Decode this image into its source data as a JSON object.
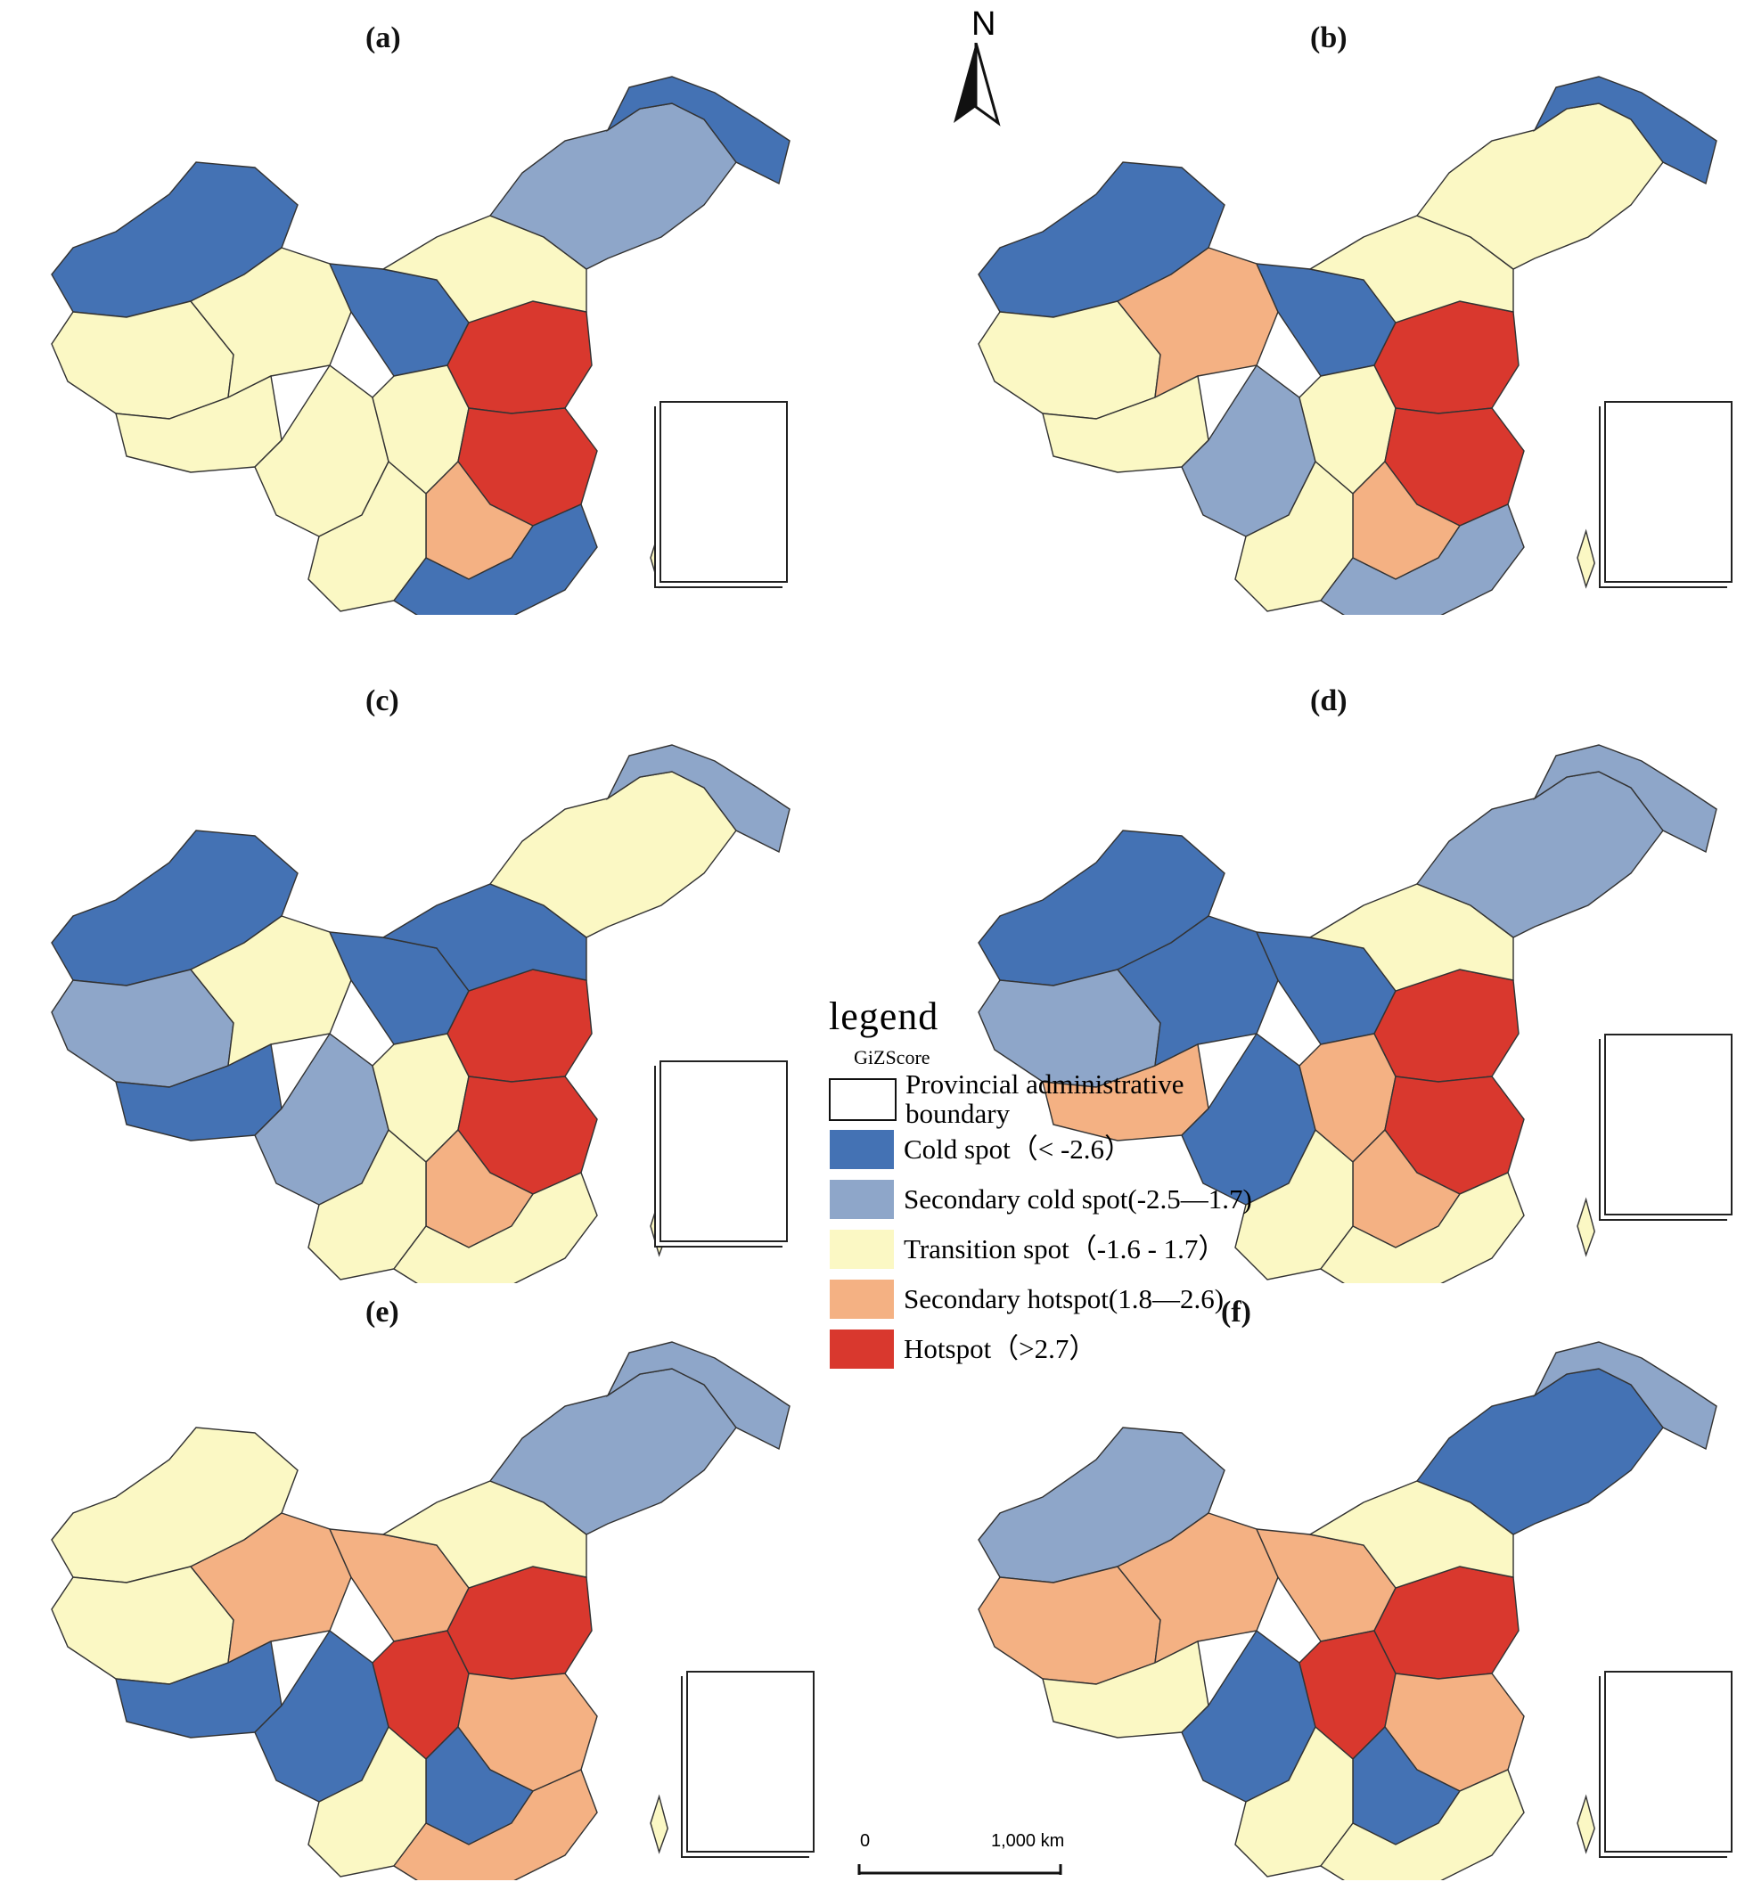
{
  "panels": [
    {
      "label": "(a)",
      "scheme": [
        "c",
        "s",
        "t",
        "t",
        "s",
        "c",
        "t",
        "h",
        "h",
        "sh",
        "t",
        "c",
        "t",
        "sc",
        "c"
      ]
    },
    {
      "label": "(b)",
      "scheme": [
        "c",
        "t",
        "sh",
        "t",
        "sc",
        "c",
        "t",
        "h",
        "h",
        "sh",
        "t",
        "sc",
        "t",
        "t",
        "c"
      ]
    },
    {
      "label": "(c)",
      "scheme": [
        "c",
        "sc",
        "t",
        "c",
        "sc",
        "c",
        "t",
        "h",
        "h",
        "sh",
        "t",
        "t",
        "c",
        "t",
        "sc"
      ]
    },
    {
      "label": "(d)",
      "scheme": [
        "c",
        "sc",
        "c",
        "sh",
        "c",
        "c",
        "sh",
        "h",
        "h",
        "sh",
        "t",
        "t",
        "t",
        "sc",
        "sc"
      ]
    },
    {
      "label": "(e)",
      "scheme": [
        "t",
        "t",
        "sh",
        "c",
        "c",
        "sh",
        "h",
        "h",
        "sh",
        "c",
        "t",
        "sh",
        "t",
        "sc",
        "sc"
      ]
    },
    {
      "label": "(f)",
      "scheme": [
        "sc",
        "sh",
        "sh",
        "t",
        "c",
        "sh",
        "h",
        "h",
        "sh",
        "c",
        "t",
        "t",
        "t",
        "c",
        "sc"
      ]
    }
  ],
  "north_arrow": {
    "letter": "N"
  },
  "legend": {
    "title": "legend",
    "subtitle": "GiZScore",
    "items": [
      {
        "label": "Provincial administrative boundary",
        "color": "#ffffff",
        "outline": true
      },
      {
        "label": "Cold spot（< -2.6）",
        "color": "#4472b4"
      },
      {
        "label": "Secondary cold spot(-2.5—1.7)",
        "color": "#8ea6c9"
      },
      {
        "label": "Transition spot（-1.6 - 1.7）",
        "color": "#fbf8c4"
      },
      {
        "label": "Secondary hotspot(1.8—2.6)",
        "color": "#f4b183"
      },
      {
        "label": "Hotspot（>2.7）",
        "color": "#d9382e"
      }
    ]
  },
  "scale_bar": {
    "start": "0",
    "end": "1,000 km"
  },
  "colors": {
    "c": "#4472b4",
    "sc": "#8ea6c9",
    "t": "#fbf8c4",
    "sh": "#f4b183",
    "h": "#d9382e"
  }
}
